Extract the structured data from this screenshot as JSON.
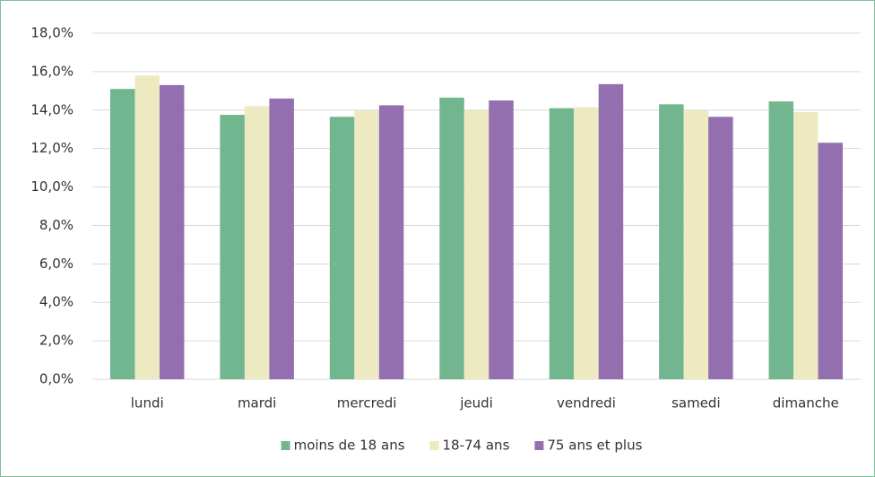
{
  "chart_data": {
    "type": "bar",
    "categories": [
      "lundi",
      "mardi",
      "mercredi",
      "jeudi",
      "vendredi",
      "samedi",
      "dimanche"
    ],
    "series": [
      {
        "name": "moins de 18 ans",
        "color": "#72b68f",
        "values": [
          15.1,
          13.75,
          13.65,
          14.65,
          14.1,
          14.3,
          14.45
        ]
      },
      {
        "name": "18-74 ans",
        "color": "#ede9c0",
        "values": [
          15.8,
          14.2,
          14.0,
          14.0,
          14.15,
          14.0,
          13.9
        ]
      },
      {
        "name": "75 ans et plus",
        "color": "#946fb0",
        "values": [
          15.3,
          14.6,
          14.25,
          14.5,
          15.35,
          13.65,
          12.3
        ]
      }
    ],
    "ylim": [
      0,
      18
    ],
    "yticks": [
      {
        "value": 0,
        "label": "0,0%"
      },
      {
        "value": 2,
        "label": "2,0%"
      },
      {
        "value": 4,
        "label": "4,0%"
      },
      {
        "value": 6,
        "label": "6,0%"
      },
      {
        "value": 8,
        "label": "8,0%"
      },
      {
        "value": 10,
        "label": "10,0%"
      },
      {
        "value": 12,
        "label": "12,0%"
      },
      {
        "value": 14,
        "label": "14,0%"
      },
      {
        "value": 16,
        "label": "16,0%"
      },
      {
        "value": 18,
        "label": "18,0%"
      }
    ],
    "grid": true,
    "legend": "bottom"
  }
}
